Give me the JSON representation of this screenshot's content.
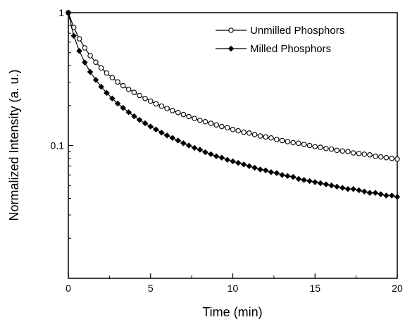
{
  "chart_data": {
    "type": "line",
    "title": "",
    "xlabel": "Time (min)",
    "ylabel": "Normalized Intensity (a. u.)",
    "xlim": [
      0,
      20
    ],
    "ylim": [
      0.01,
      1
    ],
    "yscale": "log",
    "grid": false,
    "legend_position": "top-right",
    "x_ticks": [
      0,
      5,
      10,
      15,
      20
    ],
    "x_tick_labels": [
      "0",
      "5",
      "10",
      "15",
      "20"
    ],
    "y_ticks": [
      1,
      0.1
    ],
    "y_tick_labels": [
      "1",
      "0.1"
    ],
    "series": [
      {
        "name": "Unmilled Phosphors",
        "marker": "open-circle",
        "color": "#000000",
        "x": [
          0,
          0.33,
          0.67,
          1,
          1.33,
          1.67,
          2,
          2.33,
          2.67,
          3,
          3.33,
          3.67,
          4,
          4.33,
          4.67,
          5,
          5.33,
          5.67,
          6,
          6.33,
          6.67,
          7,
          7.33,
          7.67,
          8,
          8.33,
          8.67,
          9,
          9.33,
          9.67,
          10,
          10.33,
          10.67,
          11,
          11.33,
          11.67,
          12,
          12.33,
          12.67,
          13,
          13.33,
          13.67,
          14,
          14.33,
          14.67,
          15,
          15.33,
          15.67,
          16,
          16.33,
          16.67,
          17,
          17.33,
          17.67,
          18,
          18.33,
          18.67,
          19,
          19.33,
          19.67,
          20
        ],
        "y": [
          1.0,
          0.775,
          0.636,
          0.543,
          0.475,
          0.424,
          0.384,
          0.351,
          0.324,
          0.301,
          0.282,
          0.265,
          0.251,
          0.238,
          0.226,
          0.216,
          0.206,
          0.198,
          0.19,
          0.183,
          0.177,
          0.171,
          0.165,
          0.16,
          0.155,
          0.151,
          0.147,
          0.143,
          0.139,
          0.136,
          0.132,
          0.129,
          0.126,
          0.124,
          0.121,
          0.118,
          0.116,
          0.114,
          0.111,
          0.109,
          0.107,
          0.105,
          0.104,
          0.102,
          0.1,
          0.098,
          0.097,
          0.095,
          0.094,
          0.092,
          0.091,
          0.09,
          0.088,
          0.087,
          0.086,
          0.085,
          0.083,
          0.082,
          0.081,
          0.08,
          0.079
        ]
      },
      {
        "name": "Milled Phosphors",
        "marker": "filled-diamond",
        "color": "#000000",
        "x": [
          0,
          0.33,
          0.67,
          1,
          1.33,
          1.67,
          2,
          2.33,
          2.67,
          3,
          3.33,
          3.67,
          4,
          4.33,
          4.67,
          5,
          5.33,
          5.67,
          6,
          6.33,
          6.67,
          7,
          7.33,
          7.67,
          8,
          8.33,
          8.67,
          9,
          9.33,
          9.67,
          10,
          10.33,
          10.67,
          11,
          11.33,
          11.67,
          12,
          12.33,
          12.67,
          13,
          13.33,
          13.67,
          14,
          14.33,
          14.67,
          15,
          15.33,
          15.67,
          16,
          16.33,
          16.67,
          17,
          17.33,
          17.67,
          18,
          18.33,
          18.67,
          19,
          19.33,
          19.67,
          20
        ],
        "y": [
          1.0,
          0.67,
          0.515,
          0.422,
          0.358,
          0.312,
          0.277,
          0.249,
          0.226,
          0.207,
          0.192,
          0.178,
          0.166,
          0.156,
          0.147,
          0.139,
          0.132,
          0.125,
          0.119,
          0.114,
          0.109,
          0.104,
          0.1,
          0.096,
          0.093,
          0.089,
          0.086,
          0.083,
          0.081,
          0.078,
          0.076,
          0.074,
          0.072,
          0.07,
          0.068,
          0.066,
          0.065,
          0.063,
          0.062,
          0.06,
          0.059,
          0.058,
          0.056,
          0.055,
          0.054,
          0.053,
          0.052,
          0.051,
          0.05,
          0.049,
          0.048,
          0.047,
          0.047,
          0.046,
          0.045,
          0.044,
          0.044,
          0.043,
          0.042,
          0.042,
          0.041
        ]
      }
    ]
  }
}
